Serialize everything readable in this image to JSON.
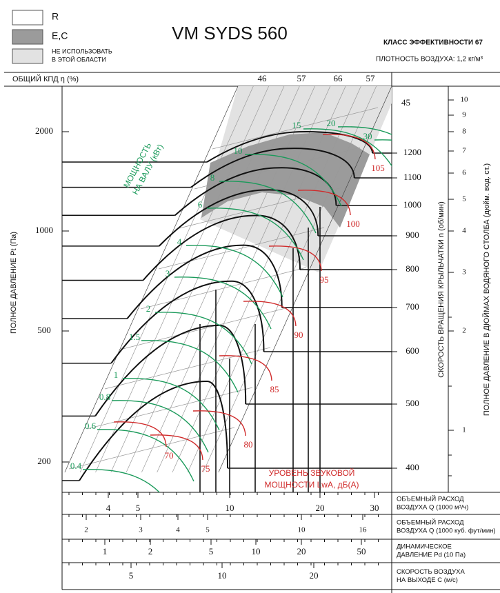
{
  "legend": [
    {
      "lines": [
        "R"
      ]
    },
    {
      "lines": [
        "E,C"
      ]
    },
    {
      "lines": [
        "НЕ ИСПОЛЬЗОВАТЬ",
        "В ЭТОЙ ОБЛАСТИ"
      ]
    }
  ],
  "title": "VM  SYDS 560",
  "efficiency_class": "КЛАСС ЭФФЕКТИВНОСТИ 67",
  "air_density": "ПЛОТНОСТЬ ВОЗДУХА: 1,2 кг/м³",
  "efficiency_header": "ОБЩИЙ КПД η (%)",
  "efficiency_ticks": [
    "46",
    "57",
    "66",
    "57"
  ],
  "efficiency_corner": "45",
  "pressure_axis": {
    "label": "ПОЛНОЕ ДАВЛЕНИЕ Pt (Па)",
    "ticks": [
      "2000",
      "1000",
      "500",
      "200"
    ]
  },
  "shaft_power": {
    "lines": [
      "МОЩНОСТЬ",
      "НА ВАЛУ (кВт)"
    ],
    "labels": [
      "0.4",
      "0.6",
      "0.8",
      "1",
      "1.5",
      "2",
      "3",
      "4",
      "6",
      "8",
      "10",
      "15",
      "20",
      "30"
    ]
  },
  "sound_power": {
    "lines": [
      "УРОВЕНЬ ЗВУКОВОЙ",
      "МОЩНОСТИ LwA, дБ(A)"
    ],
    "labels": [
      "70",
      "75",
      "80",
      "85",
      "90",
      "95",
      "100",
      "105"
    ]
  },
  "speed_axis": {
    "label": "СКОРОСТЬ ВРАЩЕНИЯ КРЫЛЬЧАТКИ  n (об/мин)",
    "ticks": [
      "1200",
      "1100",
      "1000",
      "900",
      "800",
      "700",
      "600",
      "500",
      "400"
    ]
  },
  "inch_axis": {
    "label": "ПОЛНОЕ ДАВЛЕНИЕ В ДЮЙМАХ ВОДЯНОГО СТОЛБА (дюйм. вод. ст.)",
    "ticks": [
      "10",
      "9",
      "8",
      "7",
      "6",
      "5",
      "4",
      "3",
      "2",
      "1"
    ]
  },
  "scales": [
    {
      "ticks": [
        "4",
        "5",
        "10",
        "20",
        "30"
      ],
      "lines": [
        "ОБЪЕМНЫЙ РАСХОД",
        "ВОЗДУХА Q (1000 м³/ч)"
      ]
    },
    {
      "ticks": [
        "2",
        "3",
        "4",
        "5",
        "10",
        "16"
      ],
      "lines": [
        "ОБЪЕМНЫЙ РАСХОД",
        "ВОЗДУХА Q (1000 куб. фут/мин)"
      ]
    },
    {
      "ticks": [
        "1",
        "2",
        "5",
        "10",
        "20",
        "50"
      ],
      "lines": [
        "ДИНАМИЧЕСКОЕ",
        "ДАВЛЕНИЕ Pd (10 Па)"
      ]
    },
    {
      "ticks": [
        "5",
        "10",
        "20"
      ],
      "lines": [
        "СКОРОСТЬ ВОЗДУХА",
        "НА ВЫХОДЕ С (м/с)"
      ]
    }
  ]
}
